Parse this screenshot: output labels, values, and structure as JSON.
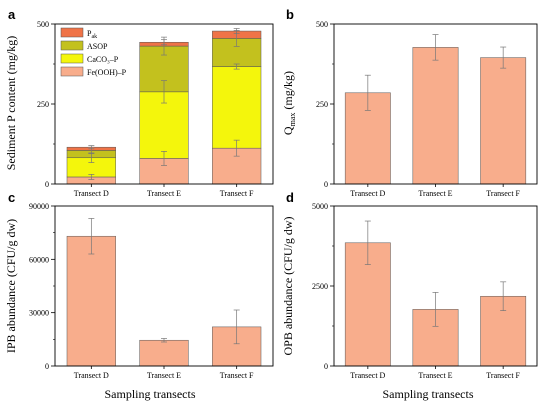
{
  "colors": {
    "fe": "#F8AD8C",
    "caco3": "#F4F60C",
    "asop": "#C3C11E",
    "pak": "#EF7347",
    "bar": "#F8AD8C",
    "axis": "#000000"
  },
  "xlabel_bottom": "Sampling transects",
  "chart_data": [
    {
      "panel": "a",
      "type": "bar",
      "stacked": true,
      "categories": [
        "Transect D",
        "Transect E",
        "Transect F"
      ],
      "ylabel": "Sediment P content (mg/kg)",
      "ylim": [
        0,
        500
      ],
      "yticks": [
        0,
        250,
        500
      ],
      "ytick_labels": [
        "0",
        "250",
        "500"
      ],
      "legend_position": "top-left",
      "series": [
        {
          "name": "Fe(OOH)–P",
          "color_key": "fe",
          "values": [
            22,
            80,
            112
          ],
          "errors": [
            8,
            22,
            25
          ]
        },
        {
          "name": "CaCO₃–P",
          "color_key": "caco3",
          "values": [
            60,
            208,
            255
          ],
          "errors": [
            15,
            35,
            8
          ]
        },
        {
          "name": "ASOP",
          "color_key": "asop",
          "values": [
            23,
            143,
            88
          ],
          "errors": [
            10,
            28,
            25
          ]
        },
        {
          "name": "P",
          "name_sub": "ak",
          "color_key": "pak",
          "values": [
            10,
            12,
            23
          ],
          "errors": [
            5,
            8,
            8
          ]
        }
      ]
    },
    {
      "panel": "b",
      "type": "bar",
      "categories": [
        "Transect D",
        "Transect E",
        "Transect F"
      ],
      "ylabel": "Q",
      "ylabel_sub": "max",
      "ylabel_unit": " (mg/kg)",
      "ylim": [
        0,
        500
      ],
      "yticks": [
        0,
        250,
        500
      ],
      "ytick_labels": [
        "0",
        "250",
        "500"
      ],
      "series": [
        {
          "values": [
            285,
            427,
            395
          ],
          "errors": [
            55,
            40,
            33
          ]
        }
      ]
    },
    {
      "panel": "c",
      "type": "bar",
      "categories": [
        "Transect D",
        "Transect E",
        "Transect F"
      ],
      "ylabel": "IPB abundance (CFU/g dw)",
      "ylim": [
        0,
        90000
      ],
      "yticks": [
        0,
        30000,
        60000,
        90000
      ],
      "ytick_labels": [
        "0",
        "30000",
        "60000",
        "90000"
      ],
      "series": [
        {
          "values": [
            73000,
            14500,
            22000
          ],
          "errors": [
            10000,
            1000,
            9500
          ]
        }
      ]
    },
    {
      "panel": "d",
      "type": "bar",
      "categories": [
        "Transect D",
        "Transect E",
        "Transect F"
      ],
      "ylabel": "OPB abundance (CFU/g dw)",
      "ylim": [
        0,
        5000
      ],
      "yticks": [
        0,
        2500,
        5000
      ],
      "ytick_labels": [
        "0",
        "2500",
        "5000"
      ],
      "series": [
        {
          "values": [
            3850,
            1770,
            2180
          ],
          "errors": [
            680,
            530,
            450
          ]
        }
      ]
    }
  ]
}
